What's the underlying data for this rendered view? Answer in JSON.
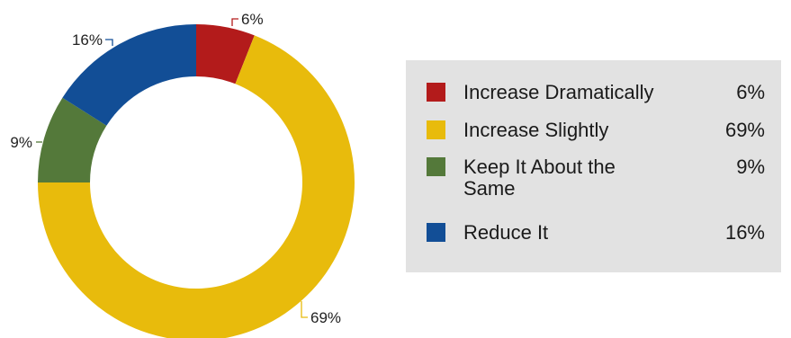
{
  "chart_data": {
    "type": "pie",
    "style": "donut",
    "categories": [
      "Increase Dramatically",
      "Increase Slightly",
      "Keep It About the Same",
      "Reduce It"
    ],
    "values": [
      6,
      69,
      9,
      16
    ],
    "value_labels": [
      "6%",
      "69%",
      "9%",
      "16%"
    ],
    "colors": [
      "#b31b1b",
      "#e8bb0c",
      "#54793a",
      "#124e96"
    ],
    "legend_position": "right"
  },
  "legend": {
    "items": [
      {
        "label": "Increase Dramatically",
        "value": "6%"
      },
      {
        "label": "Increase Slightly",
        "value": "69%"
      },
      {
        "label": "Keep It About the Same",
        "value": "9%"
      },
      {
        "label": "Reduce It",
        "value": "16%"
      }
    ]
  }
}
